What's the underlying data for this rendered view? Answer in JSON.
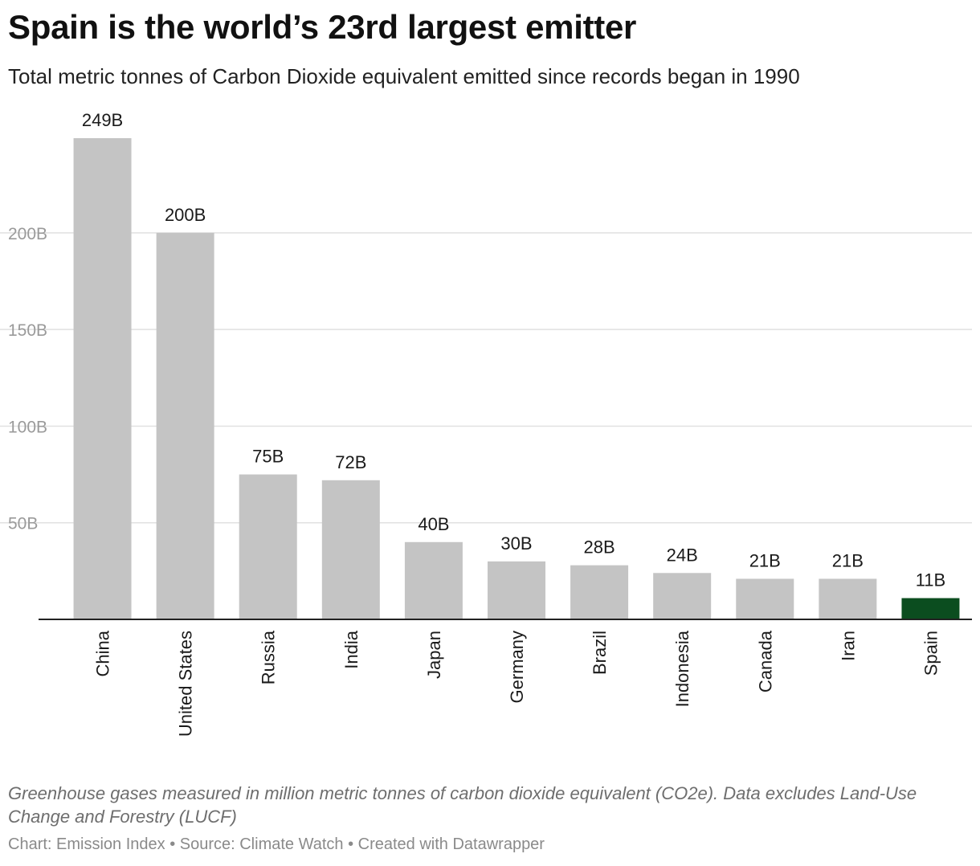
{
  "header": {
    "title": "Spain is the world’s 23rd largest emitter",
    "subtitle": "Total metric tonnes of Carbon Dioxide equivalent emitted since records began in 1990"
  },
  "chart_data": {
    "type": "bar",
    "categories": [
      "China",
      "United States",
      "Russia",
      "India",
      "Japan",
      "Germany",
      "Brazil",
      "Indonesia",
      "Canada",
      "Iran",
      "Spain"
    ],
    "values": [
      249,
      200,
      75,
      72,
      40,
      30,
      28,
      24,
      21,
      21,
      11
    ],
    "value_labels": [
      "249B",
      "200B",
      "75B",
      "72B",
      "40B",
      "30B",
      "28B",
      "24B",
      "21B",
      "21B",
      "11B"
    ],
    "yticks": [
      50,
      100,
      150,
      200
    ],
    "ytick_labels": [
      "50B",
      "100B",
      "150B",
      "200B"
    ],
    "ylim": [
      0,
      249
    ],
    "grid": true,
    "colors": {
      "default": "#c4c4c4",
      "highlight": "#0b4d1f",
      "grid": "#e1e1e1",
      "baseline": "#222222"
    },
    "highlight_category": "Spain"
  },
  "footer": {
    "note": "Greenhouse gases measured in million metric tonnes of carbon dioxide equivalent (CO2e). Data excludes Land-Use Change and Forestry (LUCF)",
    "credits": "Chart: Emission Index • Source: Climate Watch • Created with Datawrapper"
  }
}
